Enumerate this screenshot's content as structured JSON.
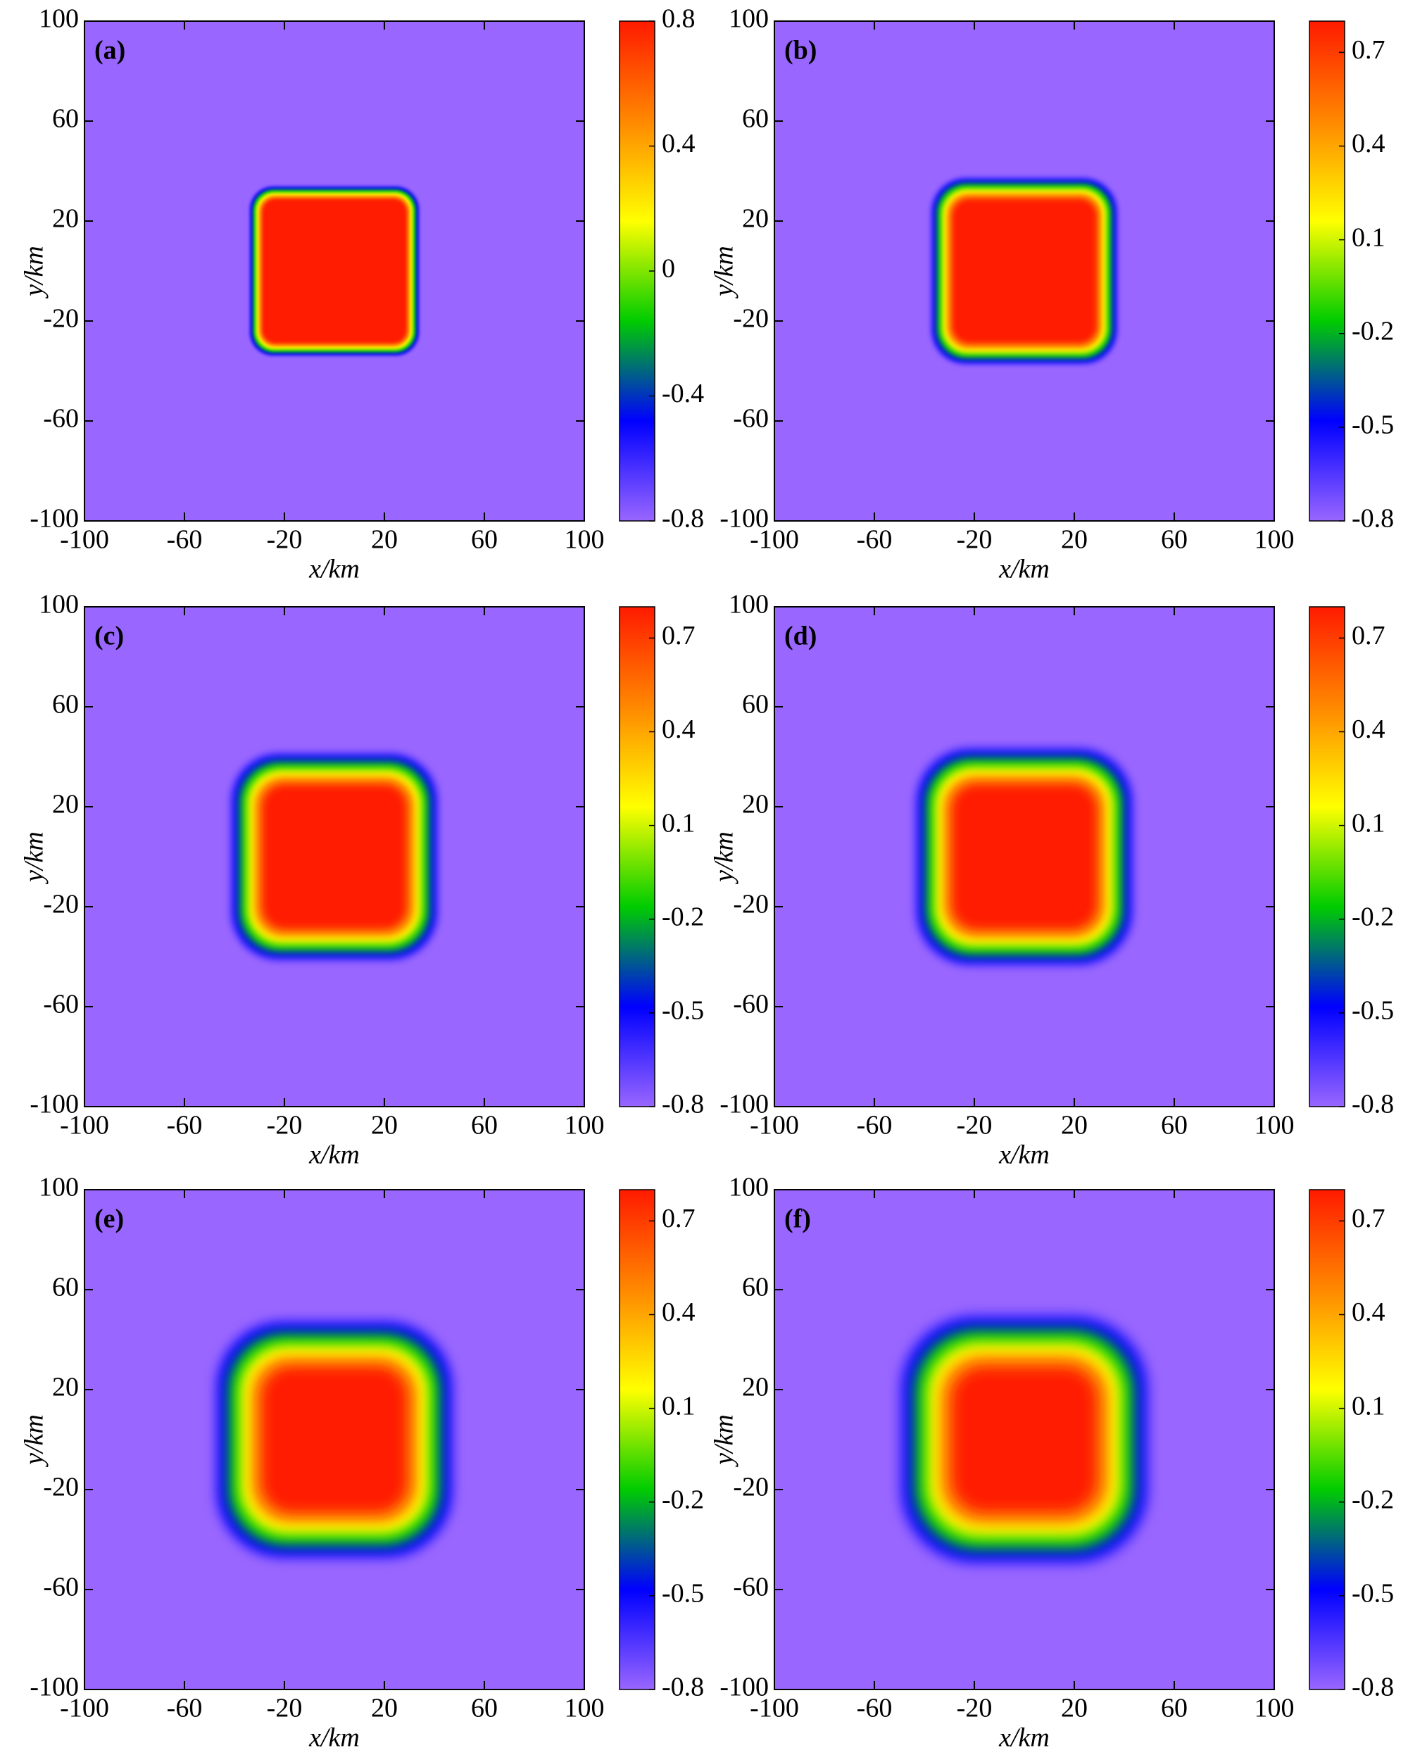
{
  "chart_data": [
    {
      "type": "heatmap",
      "panel_label": "(a)",
      "xlabel": "x/km",
      "ylabel": "y/km",
      "xlim": [
        -100,
        100
      ],
      "ylim": [
        -100,
        100
      ],
      "xticks": [
        -100,
        -60,
        -20,
        20,
        60,
        100
      ],
      "yticks": [
        -100,
        -60,
        -20,
        20,
        60,
        100
      ],
      "clim": [
        -0.8,
        0.8
      ],
      "cticks": [
        -0.8,
        -0.4,
        0,
        0.4,
        0.8
      ],
      "colormap": [
        "#9966ff",
        "#0000ff",
        "#00cc00",
        "#ffff00",
        "#ff8800",
        "#ff1a00"
      ]
    },
    {
      "type": "heatmap",
      "panel_label": "(b)",
      "xlabel": "x/km",
      "ylabel": "y/km",
      "xlim": [
        -100,
        100
      ],
      "ylim": [
        -100,
        100
      ],
      "xticks": [
        -100,
        -60,
        -20,
        20,
        60,
        100
      ],
      "yticks": [
        -100,
        -60,
        -20,
        20,
        60,
        100
      ],
      "clim": [
        -0.8,
        0.8
      ],
      "cticks": [
        -0.8,
        -0.5,
        -0.2,
        0.1,
        0.4,
        0.7
      ],
      "colormap": [
        "#9966ff",
        "#0000ff",
        "#00cc00",
        "#ffff00",
        "#ff8800",
        "#ff1a00"
      ]
    },
    {
      "type": "heatmap",
      "panel_label": "(c)",
      "xlabel": "x/km",
      "ylabel": "y/km",
      "xlim": [
        -100,
        100
      ],
      "ylim": [
        -100,
        100
      ],
      "xticks": [
        -100,
        -60,
        -20,
        20,
        60,
        100
      ],
      "yticks": [
        -100,
        -60,
        -20,
        20,
        60,
        100
      ],
      "clim": [
        -0.8,
        0.8
      ],
      "cticks": [
        -0.8,
        -0.5,
        -0.2,
        0.1,
        0.4,
        0.7
      ],
      "colormap": [
        "#9966ff",
        "#0000ff",
        "#00cc00",
        "#ffff00",
        "#ff8800",
        "#ff1a00"
      ]
    },
    {
      "type": "heatmap",
      "panel_label": "(d)",
      "xlabel": "x/km",
      "ylabel": "y/km",
      "xlim": [
        -100,
        100
      ],
      "ylim": [
        -100,
        100
      ],
      "xticks": [
        -100,
        -60,
        -20,
        20,
        60,
        100
      ],
      "yticks": [
        -100,
        -60,
        -20,
        20,
        60,
        100
      ],
      "clim": [
        -0.8,
        0.8
      ],
      "cticks": [
        -0.8,
        -0.5,
        -0.2,
        0.1,
        0.4,
        0.7
      ],
      "colormap": [
        "#9966ff",
        "#0000ff",
        "#00cc00",
        "#ffff00",
        "#ff8800",
        "#ff1a00"
      ]
    },
    {
      "type": "heatmap",
      "panel_label": "(e)",
      "xlabel": "x/km",
      "ylabel": "y/km",
      "xlim": [
        -100,
        100
      ],
      "ylim": [
        -100,
        100
      ],
      "xticks": [
        -100,
        -60,
        -20,
        20,
        60,
        100
      ],
      "yticks": [
        -100,
        -60,
        -20,
        20,
        60,
        100
      ],
      "clim": [
        -0.8,
        0.8
      ],
      "cticks": [
        -0.8,
        -0.5,
        -0.2,
        0.1,
        0.4,
        0.7
      ],
      "colormap": [
        "#9966ff",
        "#0000ff",
        "#00cc00",
        "#ffff00",
        "#ff8800",
        "#ff1a00"
      ]
    },
    {
      "type": "heatmap",
      "panel_label": "(f)",
      "xlabel": "x/km",
      "ylabel": "y/km",
      "xlim": [
        -100,
        100
      ],
      "ylim": [
        -100,
        100
      ],
      "xticks": [
        -100,
        -60,
        -20,
        20,
        60,
        100
      ],
      "yticks": [
        -100,
        -60,
        -20,
        20,
        60,
        100
      ],
      "clim": [
        -0.8,
        0.8
      ],
      "cticks": [
        -0.8,
        -0.5,
        -0.2,
        0.1,
        0.4,
        0.7
      ],
      "colormap": [
        "#9966ff",
        "#0000ff",
        "#00cc00",
        "#ffff00",
        "#ff8800",
        "#ff1a00"
      ]
    }
  ]
}
